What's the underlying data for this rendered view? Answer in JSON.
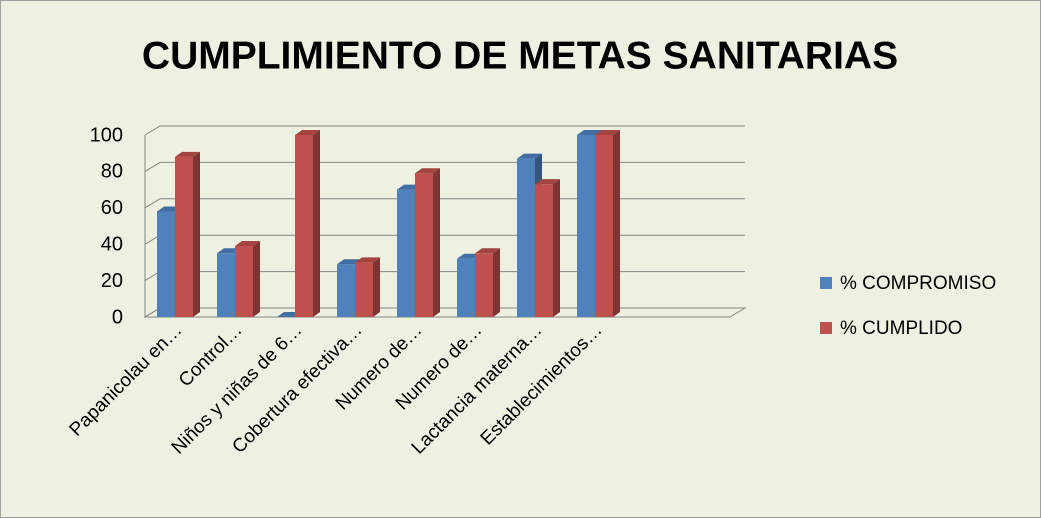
{
  "chart_data": {
    "type": "bar3d",
    "title": "CUMPLIMIENTO DE METAS SANITARIAS",
    "categories": [
      "Papanicolau en…",
      "Control…",
      "Niños y niñas de 6…",
      "Cobertura efectiva…",
      "Numero de…",
      "Numero de…",
      "Lactancia materna…",
      "Establecimientos…",
      null,
      null
    ],
    "series": [
      {
        "name": "% COMPROMISO",
        "color": "#4f81bd",
        "values": [
          58,
          35,
          0,
          29,
          70,
          32,
          87,
          100,
          null,
          null
        ]
      },
      {
        "name": "% CUMPLIDO",
        "color": "#c0504d",
        "values": [
          88,
          39,
          100,
          30,
          79,
          35,
          73,
          100,
          null,
          null
        ]
      }
    ],
    "ylim": [
      0,
      100
    ],
    "yticks": [
      0,
      20,
      40,
      60,
      80,
      100
    ],
    "grid": true,
    "legend": "right"
  }
}
